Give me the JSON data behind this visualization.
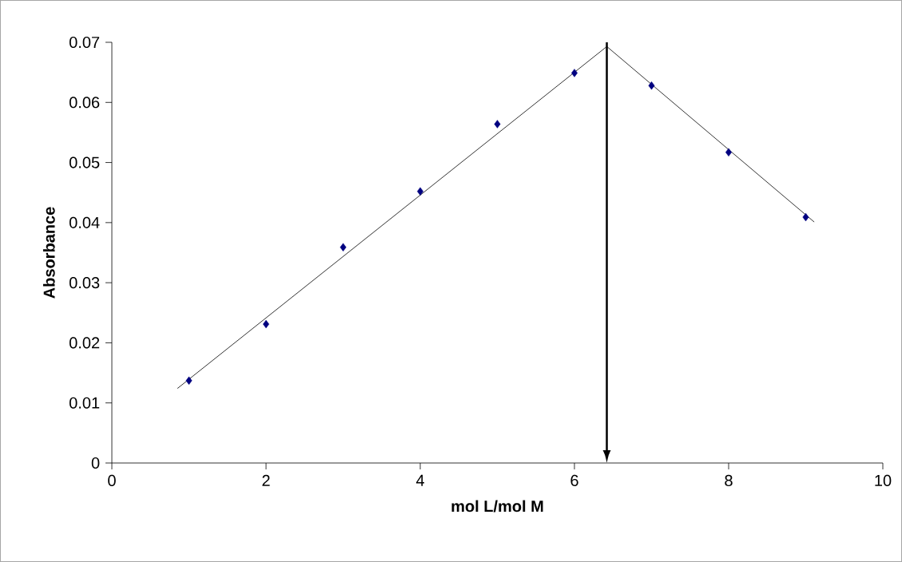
{
  "chart_data": {
    "type": "scatter",
    "xlabel": "mol L/mol M",
    "ylabel": "Absorbance",
    "xlim": [
      0,
      10
    ],
    "ylim": [
      0,
      0.07
    ],
    "xticks": [
      0,
      2,
      4,
      6,
      8,
      10
    ],
    "yticks": [
      0,
      0.01,
      0.02,
      0.03,
      0.04,
      0.05,
      0.06,
      0.07
    ],
    "grid": false,
    "marker": "diamond",
    "series": [
      {
        "color": "#000080",
        "x": [
          1,
          2,
          3,
          4,
          5,
          6,
          7,
          8,
          9
        ],
        "values": [
          0.0137,
          0.0231,
          0.0359,
          0.0452,
          0.0564,
          0.0649,
          0.0628,
          0.0517,
          0.0409
        ]
      },
      {
        "type": "line",
        "marker": "none",
        "color": "#000000",
        "x": [
          0.85,
          6.42
        ],
        "values": [
          0.0124,
          0.0693
        ]
      },
      {
        "type": "line",
        "marker": "none",
        "color": "#000000",
        "x": [
          6.42,
          9.11
        ],
        "values": [
          0.0693,
          0.0401
        ]
      }
    ],
    "ref_lines": [
      {
        "axis": "x",
        "value": 6.42,
        "color": "#000000"
      }
    ]
  }
}
